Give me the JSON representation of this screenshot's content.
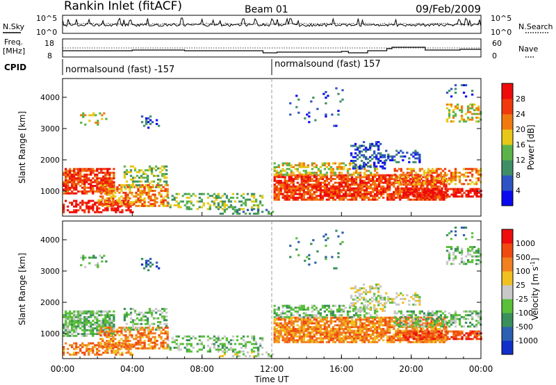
{
  "header": {
    "station": "Rankin Inlet (fitACF)",
    "beam": "Beam 01",
    "date": "09/Feb/2009"
  },
  "nsky_panel": {
    "left_label": "N.Sky",
    "right_label": "N.Search",
    "left_ticks": [
      "10^5",
      "10^0"
    ],
    "right_ticks": [
      "10^5",
      "10^0"
    ]
  },
  "freq_panel": {
    "left_label_1": "Freq.",
    "left_label_2": "[MHz]",
    "left_ticks": [
      "18",
      "8"
    ],
    "right_label": "Nave",
    "right_ticks": [
      "60",
      "0"
    ]
  },
  "cpid_panel": {
    "label": "CPID",
    "segments": [
      {
        "mode": "normalsound (fast) -157",
        "start_hour": 0
      },
      {
        "mode": "normalsound (fast) 157",
        "start_hour": 12
      }
    ]
  },
  "chart_data": [
    {
      "type": "heatmap",
      "title": "",
      "parameter": "Power",
      "ylabel": "Slant Range [km]",
      "xlabel": "",
      "xlim_hours": [
        0,
        24
      ],
      "ylim": [
        200,
        4600
      ],
      "yticks": [
        1000,
        2000,
        3000,
        4000
      ],
      "colorbar": {
        "label": "Power [dB]",
        "ticks": [
          "4",
          "8",
          "12",
          "16",
          "20",
          "24",
          "28"
        ],
        "colors": [
          "#0a0af0",
          "#2d54c2",
          "#3f8f66",
          "#5bb44a",
          "#e7c818",
          "#f07a10",
          "#f03a0c",
          "#ee0b0b"
        ]
      }
    },
    {
      "type": "heatmap",
      "title": "",
      "parameter": "Velocity",
      "ylabel": "Slant Range [km]",
      "xlabel": "Time UT",
      "xlim_hours": [
        0,
        24
      ],
      "xticks": [
        "00:00",
        "04:00",
        "08:00",
        "12:00",
        "16:00",
        "20:00",
        "00:00"
      ],
      "ylim": [
        200,
        4600
      ],
      "yticks": [
        1000,
        2000,
        3000,
        4000
      ],
      "colorbar": {
        "label": "Velocity [m s-1]",
        "ticks": [
          "1000",
          "500",
          "100",
          "25",
          "-25",
          "-100",
          "-500",
          "-1000"
        ],
        "colors": [
          "#1030c8",
          "#2d60b0",
          "#3a8f5a",
          "#5abf3a",
          "#c8c8c8",
          "#f0c020",
          "#f08020",
          "#f04a10",
          "#ee0e0e"
        ]
      }
    }
  ]
}
